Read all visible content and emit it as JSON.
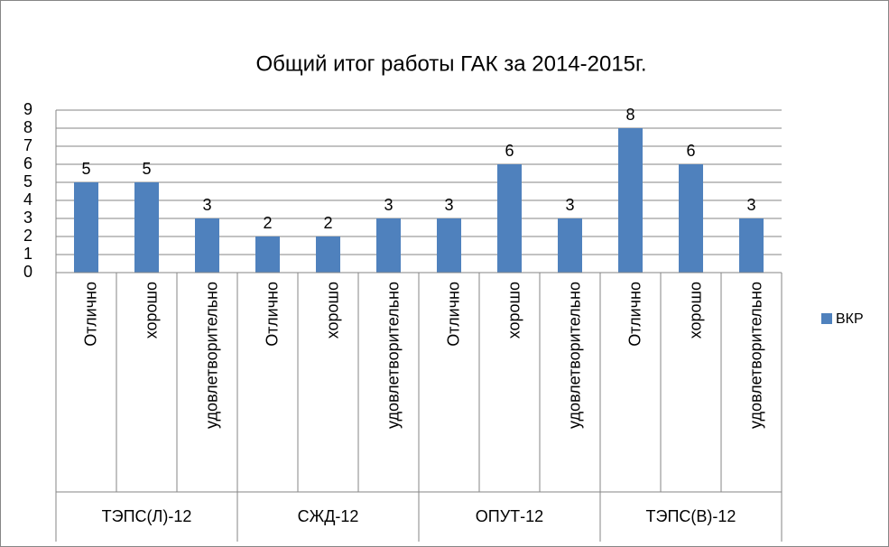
{
  "chart_data": {
    "type": "bar",
    "title": "Общий итог работы ГАК за 2014-2015г.",
    "groups": [
      {
        "label": "ТЭПС(Л)-12",
        "categories": [
          "Отлично",
          "хорошо",
          "удовлетворительно"
        ]
      },
      {
        "label": "СЖД-12",
        "categories": [
          "Отлично",
          "хорошо",
          "удовлетворительно"
        ]
      },
      {
        "label": "ОПУТ-12",
        "categories": [
          "Отлично",
          "хорошо",
          "удовлетворительно"
        ]
      },
      {
        "label": "ТЭПС(В)-12",
        "categories": [
          "Отлично",
          "хорошо",
          "удовлетворительно"
        ]
      }
    ],
    "series": [
      {
        "name": "ВКР",
        "color": "#4f81bd",
        "values": [
          5,
          5,
          3,
          2,
          2,
          3,
          3,
          6,
          3,
          8,
          6,
          3
        ]
      }
    ],
    "ylim": [
      0,
      9
    ],
    "yticks": [
      0,
      1,
      2,
      3,
      4,
      5,
      6,
      7,
      8,
      9
    ],
    "grid": true,
    "legend": "right"
  }
}
